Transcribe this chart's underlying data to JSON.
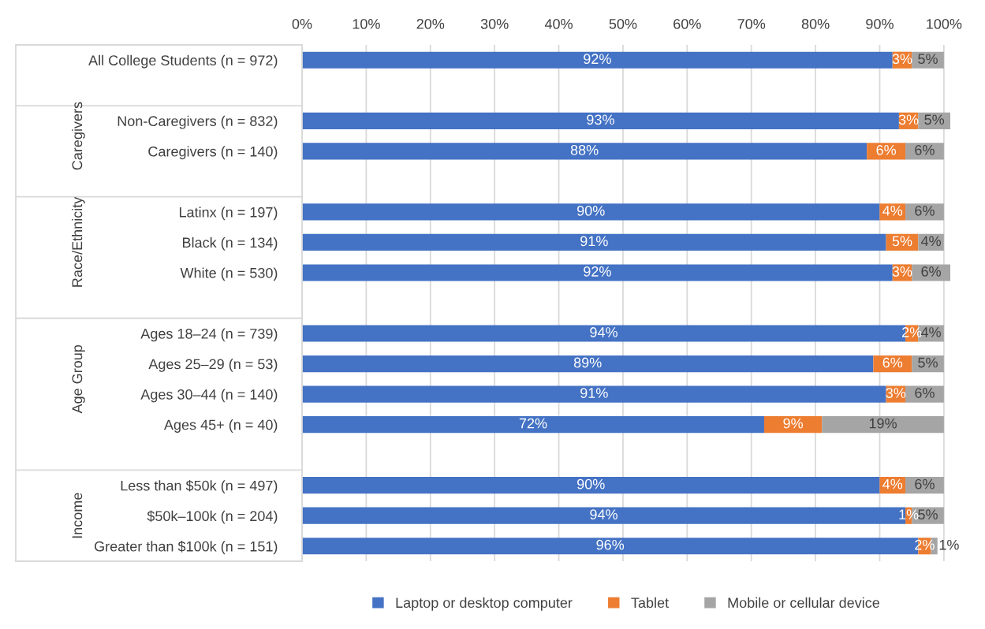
{
  "chart_data": {
    "type": "bar",
    "orientation": "horizontal",
    "stacked": true,
    "categories": [
      "All College Students (n = 972)",
      null,
      "Non-Caregivers (n = 832)",
      "Caregivers (n = 140)",
      null,
      "Latinx (n = 197)",
      "Black (n = 134)",
      "White (n = 530)",
      null,
      "Ages 18–24 (n = 739)",
      "Ages 25–29 (n = 53)",
      "Ages 30–44 (n = 140)",
      "Ages 45+ (n = 40)",
      null,
      "Less than $50k (n = 497)",
      "$50k–100k (n = 204)",
      "Greater than $100k (n = 151)"
    ],
    "series": [
      {
        "name": "Laptop or desktop computer",
        "color": "#4472c4",
        "values": [
          92,
          null,
          93,
          88,
          null,
          90,
          91,
          92,
          null,
          94,
          89,
          91,
          72,
          null,
          90,
          94,
          96
        ],
        "value_labels": [
          "92%",
          null,
          "93%",
          "88%",
          null,
          "90%",
          "91%",
          "92%",
          null,
          "94%",
          "89%",
          "91%",
          "72%",
          null,
          "90%",
          "94%",
          "96%"
        ]
      },
      {
        "name": "Tablet",
        "color": "#ed7d31",
        "values": [
          3,
          null,
          3,
          6,
          null,
          4,
          5,
          3,
          null,
          2,
          6,
          3,
          9,
          null,
          4,
          1,
          2
        ],
        "value_labels": [
          "3%",
          null,
          "3%",
          "6%",
          null,
          "4%",
          "5%",
          "3%",
          null,
          "2%",
          "6%",
          "3%",
          "9%",
          null,
          "4%",
          "1%",
          "2%"
        ]
      },
      {
        "name": "Mobile or cellular device",
        "color": "#a5a5a5",
        "values": [
          5,
          null,
          5,
          6,
          null,
          6,
          4,
          6,
          null,
          4,
          5,
          6,
          19,
          null,
          6,
          5,
          1
        ],
        "value_labels": [
          "5%",
          null,
          "5%",
          "6%",
          null,
          "6%",
          "4%",
          "6%",
          null,
          "4%",
          "5%",
          "6%",
          "19%",
          null,
          "6%",
          "5%",
          "1%"
        ]
      }
    ],
    "xlim": [
      0,
      101
    ],
    "xticks": [
      {
        "value": 0,
        "label": "0%"
      },
      {
        "value": 10,
        "label": "10%"
      },
      {
        "value": 20,
        "label": "20%"
      },
      {
        "value": 30,
        "label": "30%"
      },
      {
        "value": 40,
        "label": "40%"
      },
      {
        "value": 50,
        "label": "50%"
      },
      {
        "value": 60,
        "label": "60%"
      },
      {
        "value": 70,
        "label": "70%"
      },
      {
        "value": 80,
        "label": "80%"
      },
      {
        "value": 90,
        "label": "90%"
      },
      {
        "value": 100,
        "label": "100%"
      }
    ],
    "annotations": [
      "Caregivers",
      "Race/Ethnicity",
      "Age Group",
      "Income"
    ],
    "grid": "x",
    "legend": "bottom"
  }
}
